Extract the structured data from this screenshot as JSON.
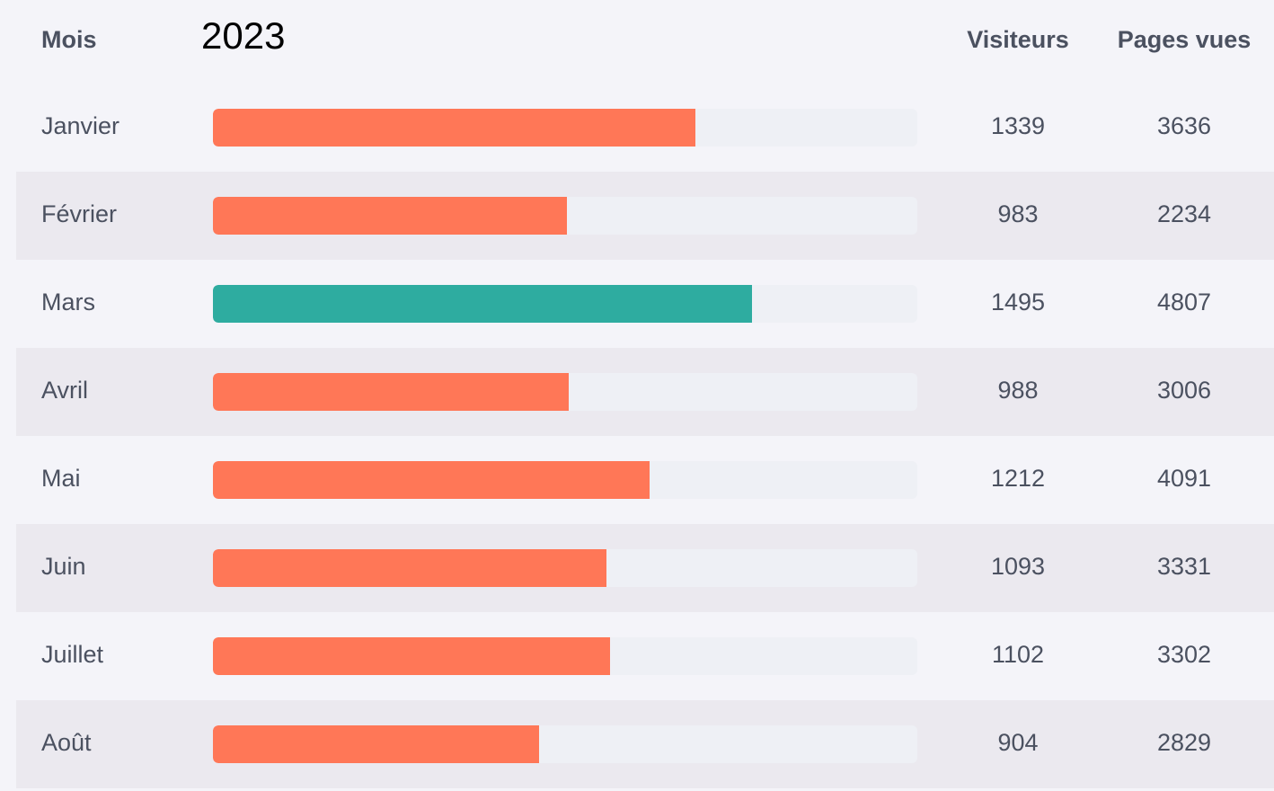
{
  "header": {
    "month_label": "Mois",
    "year": "2023",
    "visitors_label": "Visiteurs",
    "views_label": "Pages vues"
  },
  "colors": {
    "bar_default": "#ff7757",
    "bar_highlight": "#2eaca0",
    "track": "#eef0f5",
    "row_alt": "#ebe9ef",
    "background": "#f4f4f9"
  },
  "chart_data": {
    "type": "bar",
    "orientation": "horizontal",
    "categories": [
      "Janvier",
      "Février",
      "Mars",
      "Avril",
      "Mai",
      "Juin",
      "Juillet",
      "Août"
    ],
    "series": [
      {
        "name": "Visiteurs",
        "values": [
          1339,
          983,
          1495,
          988,
          1212,
          1093,
          1102,
          904
        ]
      },
      {
        "name": "Pages vues",
        "values": [
          3636,
          2234,
          4807,
          3006,
          4091,
          3331,
          3302,
          2829
        ]
      }
    ],
    "bar_series": "Visiteurs",
    "bar_max": 1955,
    "highlight_category": "Mars",
    "grid": false
  }
}
